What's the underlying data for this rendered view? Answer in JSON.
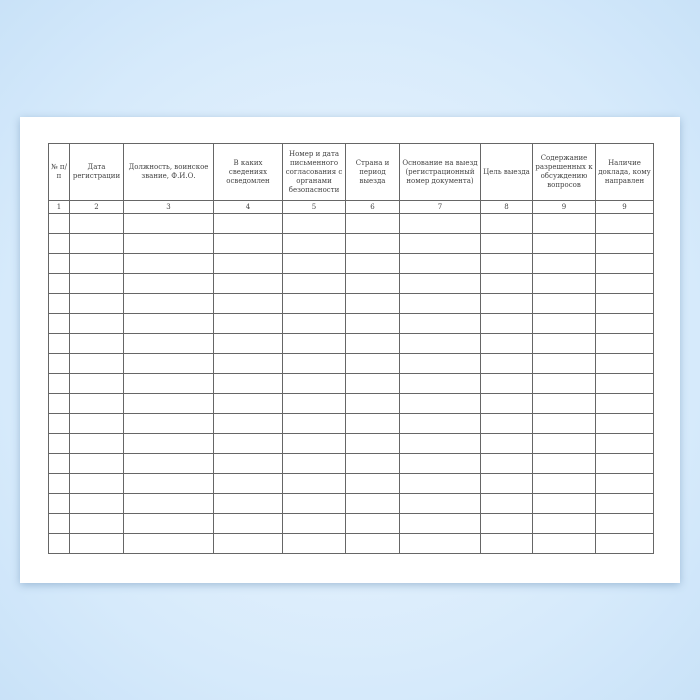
{
  "table": {
    "headers": [
      "№ п/п",
      "Дата регистрации",
      "Должность, воинское звание, Ф.И.О.",
      "В каких сведениях осведомлен",
      "Номер и дата письменного согласования с органами безопасности",
      "Страна и период выезда",
      "Основание на выезд (регистрационный номер документа)",
      "Цель выезда",
      "Содержание разрешенных к обсуждению вопросов",
      "Наличие доклада, кому направлен"
    ],
    "column_numbers": [
      "1",
      "2",
      "3",
      "4",
      "5",
      "6",
      "7",
      "8",
      "9",
      "9"
    ],
    "empty_rows": 17
  }
}
